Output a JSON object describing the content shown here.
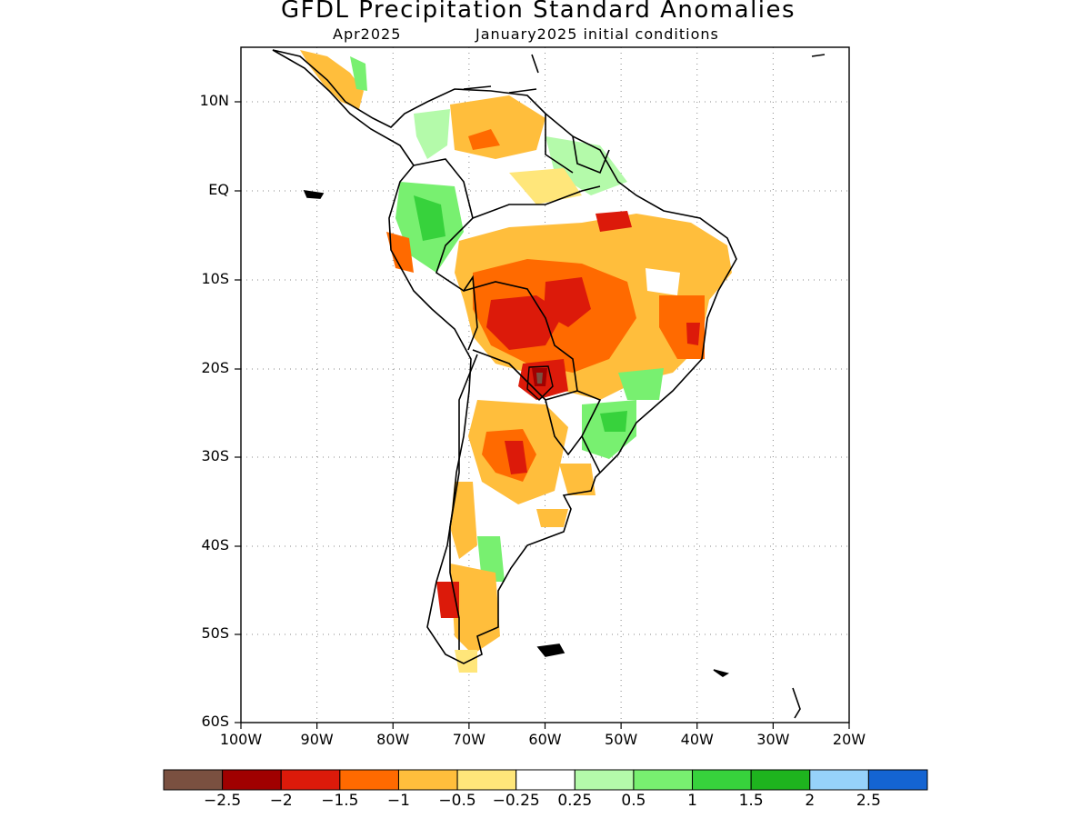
{
  "title": "GFDL Precipitation Standard Anomalies",
  "subtitle_left": "Apr2025",
  "subtitle_right": "January2025 initial conditions",
  "map": {
    "lon_range": [
      -100,
      -20
    ],
    "lat_range": [
      -60,
      16
    ],
    "grid": true,
    "y_ticks": [
      "10N",
      "EQ",
      "10S",
      "20S",
      "30S",
      "40S",
      "50S",
      "60S"
    ],
    "x_ticks": [
      "100W",
      "90W",
      "80W",
      "70W",
      "60W",
      "50W",
      "40W",
      "30W",
      "20W"
    ]
  },
  "colorbar": {
    "colors": [
      "#7a5040",
      "#a00000",
      "#dc1a0a",
      "#ff6a00",
      "#ffbe3c",
      "#ffe67a",
      "#ffffff",
      "#b4faaa",
      "#78f070",
      "#37d23c",
      "#1eb41e",
      "#96d2fa",
      "#1464d2"
    ],
    "labels": [
      "-2.5",
      "-2",
      "-1.5",
      "-1",
      "-0.5",
      "-0.25",
      "0.25",
      "0.5",
      "1",
      "1.5",
      "2",
      "2.5"
    ]
  }
}
